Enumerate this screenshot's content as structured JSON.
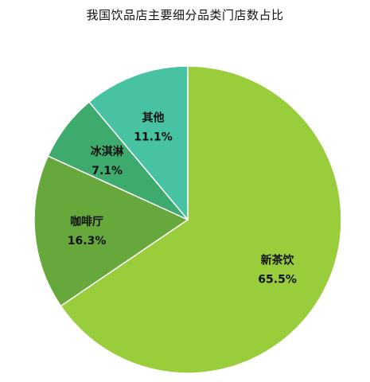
{
  "chart_data": {
    "type": "pie",
    "title": "我国饮品店主要细分品类门店数占比",
    "slices": [
      {
        "label": "新茶饮",
        "value": 65.5,
        "value_label": "65.5%",
        "color": "#9acd3c"
      },
      {
        "label": "咖啡厅",
        "value": 16.3,
        "value_label": "16.3%",
        "color": "#66a83c"
      },
      {
        "label": "冰淇淋",
        "value": 7.1,
        "value_label": "7.1%",
        "color": "#3dab6e"
      },
      {
        "label": "其他",
        "value": 11.1,
        "value_label": "11.1%",
        "color": "#47c3a3"
      }
    ],
    "start": "12 o'clock",
    "direction": "clockwise",
    "legend": "none",
    "labels": "inside slices"
  }
}
